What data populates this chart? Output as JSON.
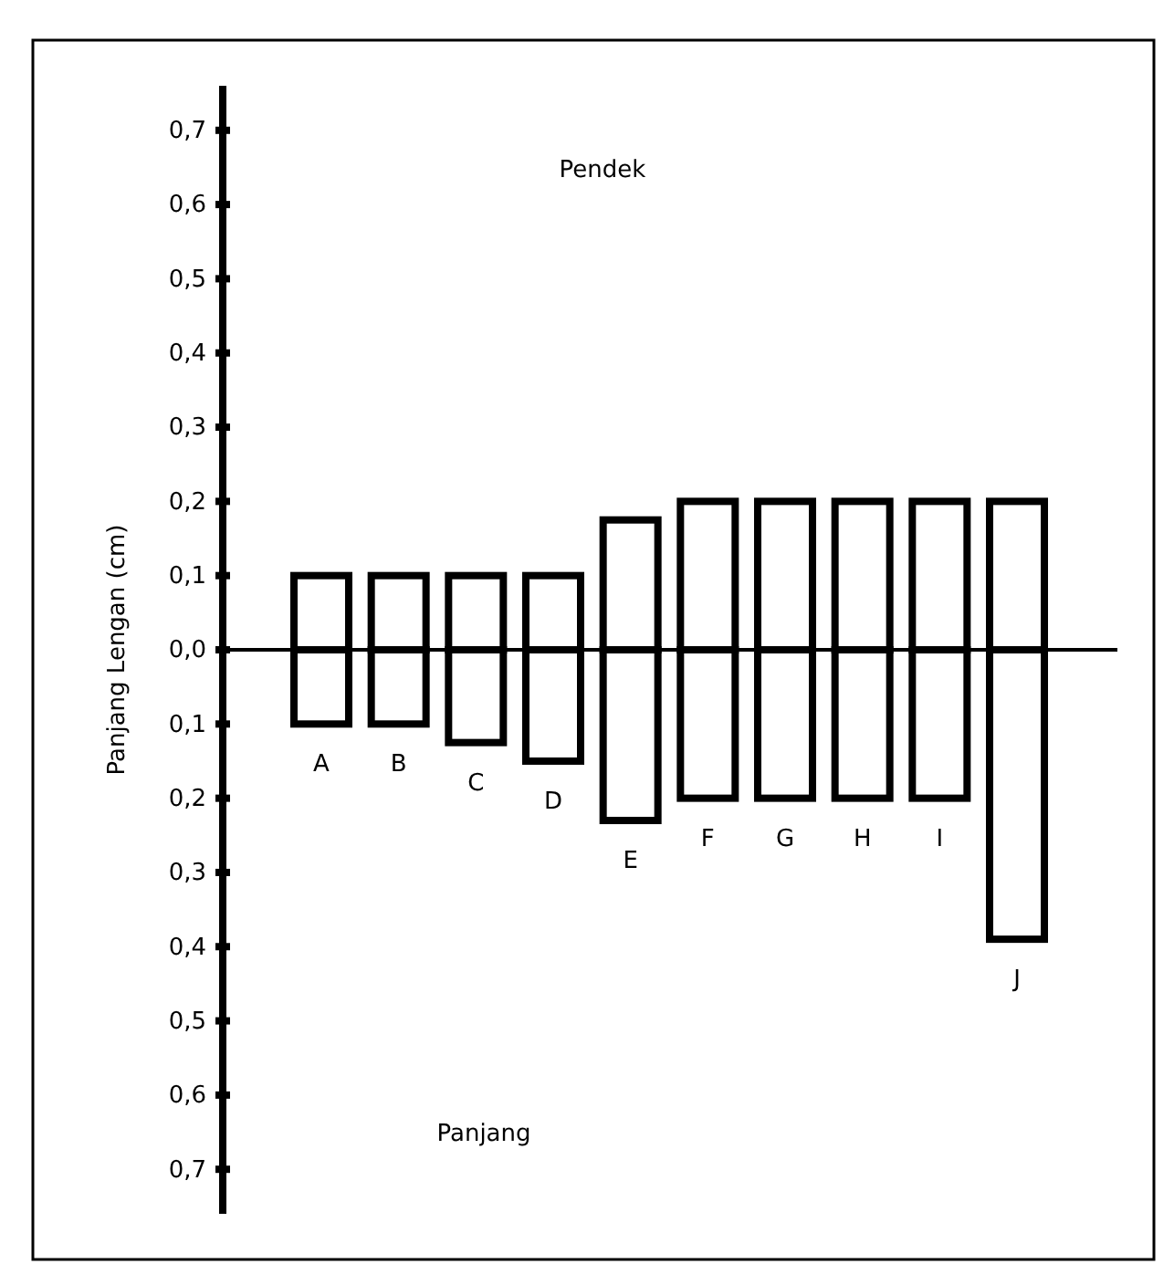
{
  "chart_data": {
    "type": "bar",
    "stacked": true,
    "ylabel": "Panjang Lengan (cm)",
    "categories": [
      "A",
      "B",
      "C",
      "D",
      "E",
      "F",
      "G",
      "H",
      "I",
      "J"
    ],
    "series": [
      {
        "color": "#ffffff",
        "values": [
          0.1,
          0.1,
          0.1,
          0.1,
          0.175,
          0.2,
          0.2,
          0.2,
          0.2,
          0.2
        ]
      },
      {
        "color": "#ffffff",
        "values": [
          -0.1,
          -0.1,
          -0.125,
          -0.15,
          -0.23,
          -0.2,
          -0.2,
          -0.2,
          -0.2,
          -0.39
        ]
      }
    ],
    "ylim": [
      -0.76,
      0.76
    ],
    "yticks": [
      {
        "value": 0.7,
        "label": "0,7"
      },
      {
        "value": 0.6,
        "label": "0,6"
      },
      {
        "value": 0.5,
        "label": "0,5"
      },
      {
        "value": 0.4,
        "label": "0,4"
      },
      {
        "value": 0.3,
        "label": "0,3"
      },
      {
        "value": 0.2,
        "label": "0,2"
      },
      {
        "value": 0.1,
        "label": "0,1"
      },
      {
        "value": 0,
        "label": "0,0"
      },
      {
        "value": -0.1,
        "label": "0,1"
      },
      {
        "value": -0.2,
        "label": "0,2"
      },
      {
        "value": -0.3,
        "label": "0,3"
      },
      {
        "value": -0.4,
        "label": "0,4"
      },
      {
        "value": -0.5,
        "label": "0,5"
      },
      {
        "value": -0.6,
        "label": "0,6"
      },
      {
        "value": -0.7,
        "label": "0,7"
      }
    ],
    "annotations": [
      "Pendek",
      "Panjang"
    ]
  }
}
